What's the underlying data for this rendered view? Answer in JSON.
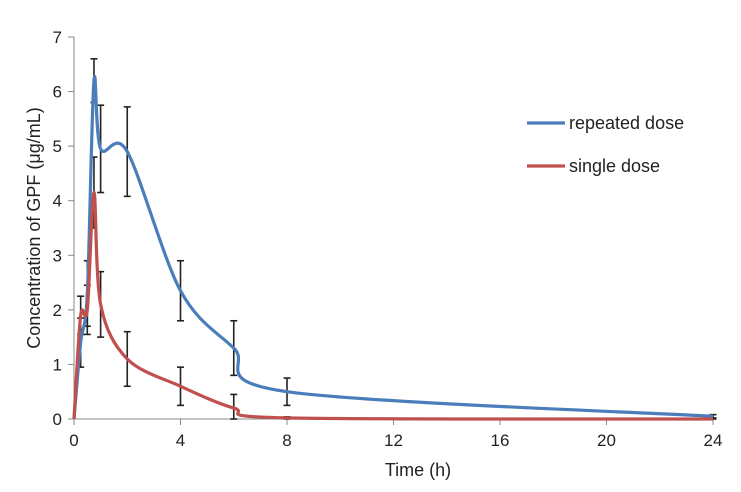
{
  "chart_data": {
    "type": "line",
    "xlabel": "Time (h)",
    "ylabel": "Concentration of GPF (μg/mL)",
    "xlim": [
      0,
      24
    ],
    "ylim": [
      0,
      7
    ],
    "x_ticks": [
      0,
      4,
      8,
      12,
      16,
      20,
      24
    ],
    "x_tick_labels": [
      "0",
      "4",
      "8",
      "12",
      "16",
      "20",
      "24"
    ],
    "y_ticks": [
      0,
      1,
      2,
      3,
      4,
      5,
      6,
      7
    ],
    "y_tick_labels": [
      "0",
      "1",
      "2",
      "3",
      "4",
      "5",
      "6",
      "7"
    ],
    "grid": false,
    "legend_position": "right",
    "series": [
      {
        "name": "repeated dose",
        "color": "#4a7ebb",
        "x": [
          0,
          0.25,
          0.5,
          0.75,
          1,
          2,
          4,
          6,
          8,
          24
        ],
        "y": [
          0,
          1.4,
          2.3,
          6.2,
          4.95,
          4.9,
          2.35,
          1.3,
          0.5,
          0.05
        ],
        "error": [
          0,
          0.45,
          0.6,
          0.4,
          0.8,
          0.82,
          0.55,
          0.5,
          0.25,
          0.03
        ]
      },
      {
        "name": "single dose",
        "color": "#c0504d",
        "x": [
          0,
          0.25,
          0.5,
          0.75,
          1,
          2,
          4,
          6,
          8,
          24
        ],
        "y": [
          0,
          1.9,
          2.0,
          4.15,
          2.1,
          1.1,
          0.6,
          0.2,
          0.02,
          0.0
        ],
        "error": [
          0,
          0.35,
          0.45,
          0.65,
          0.6,
          0.5,
          0.35,
          0.25,
          0.02,
          0.01
        ]
      }
    ]
  }
}
